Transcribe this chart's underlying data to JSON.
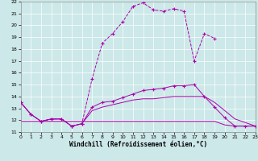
{
  "xlabel": "Windchill (Refroidissement éolien,°C)",
  "background_color": "#cce8e8",
  "grid_color": "#ffffff",
  "line_color": "#aa00aa",
  "xlim": [
    0,
    23
  ],
  "ylim": [
    11,
    22
  ],
  "yticks": [
    11,
    12,
    13,
    14,
    15,
    16,
    17,
    18,
    19,
    20,
    21,
    22
  ],
  "xticks": [
    0,
    1,
    2,
    3,
    4,
    5,
    6,
    7,
    8,
    9,
    10,
    11,
    12,
    13,
    14,
    15,
    16,
    17,
    18,
    19,
    20,
    21,
    22,
    23
  ],
  "curve1_x": [
    0,
    1,
    2,
    3,
    4,
    5,
    6,
    7,
    8,
    9,
    10,
    11,
    12,
    13,
    14,
    15,
    16,
    17,
    18,
    19
  ],
  "curve1_y": [
    13.5,
    12.5,
    11.9,
    12.1,
    12.1,
    11.5,
    11.7,
    15.5,
    18.5,
    19.3,
    20.3,
    21.6,
    21.9,
    21.3,
    21.2,
    21.4,
    21.2,
    17.0,
    19.3,
    18.9
  ],
  "curve2_x": [
    0,
    1,
    2,
    3,
    4,
    5,
    6,
    7,
    8,
    9,
    10,
    11,
    12,
    13,
    14,
    15,
    16,
    17,
    18,
    19,
    20,
    21,
    22,
    23
  ],
  "curve2_y": [
    13.5,
    12.5,
    11.9,
    12.1,
    12.1,
    11.5,
    11.7,
    13.1,
    13.5,
    13.6,
    13.9,
    14.2,
    14.5,
    14.6,
    14.7,
    14.9,
    14.9,
    15.0,
    14.0,
    13.1,
    12.2,
    11.5,
    11.5,
    11.5
  ],
  "curve3_x": [
    0,
    1,
    2,
    3,
    4,
    5,
    6,
    7,
    8,
    9,
    10,
    11,
    12,
    13,
    14,
    15,
    16,
    17,
    18,
    19,
    20,
    21,
    22,
    23
  ],
  "curve3_y": [
    11.9,
    11.9,
    11.9,
    11.9,
    11.9,
    11.9,
    11.9,
    11.9,
    11.9,
    11.9,
    11.9,
    11.9,
    11.9,
    11.9,
    11.9,
    11.9,
    11.9,
    11.9,
    11.9,
    11.9,
    11.6,
    11.5,
    11.5,
    11.5
  ],
  "curve4_x": [
    0,
    1,
    2,
    3,
    4,
    5,
    6,
    7,
    8,
    9,
    10,
    11,
    12,
    13,
    14,
    15,
    16,
    17,
    18,
    19,
    20,
    21,
    22,
    23
  ],
  "curve4_y": [
    13.5,
    12.5,
    11.9,
    12.1,
    12.1,
    11.5,
    11.7,
    12.8,
    13.1,
    13.3,
    13.5,
    13.7,
    13.8,
    13.8,
    13.9,
    14.0,
    14.0,
    14.0,
    14.0,
    13.5,
    12.8,
    12.1,
    11.8,
    11.5
  ]
}
